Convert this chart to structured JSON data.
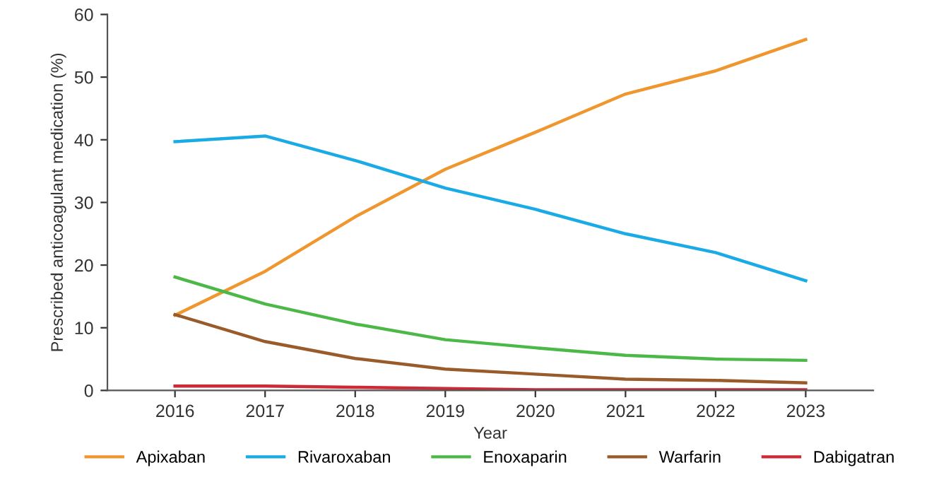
{
  "chart_data": {
    "type": "line",
    "xlabel": "Year",
    "ylabel": "Prescribed anticoagulant medication (%)",
    "categories": [
      "2016",
      "2017",
      "2018",
      "2019",
      "2020",
      "2021",
      "2022",
      "2023"
    ],
    "series": [
      {
        "name": "Apixaban",
        "color": "#f0962e",
        "values": [
          12,
          19,
          27.7,
          35.3,
          41.2,
          47.3,
          51,
          56
        ]
      },
      {
        "name": "Rivaroxaban",
        "color": "#1aabe6",
        "values": [
          39.7,
          40.6,
          36.7,
          32.3,
          28.9,
          25,
          22,
          17.5
        ]
      },
      {
        "name": "Enoxaparin",
        "color": "#4cb848",
        "values": [
          18.1,
          13.8,
          10.6,
          8.1,
          6.8,
          5.6,
          5.0,
          4.8
        ]
      },
      {
        "name": "Warfarin",
        "color": "#9a5b2b",
        "values": [
          12.1,
          7.8,
          5.1,
          3.4,
          2.6,
          1.8,
          1.6,
          1.2
        ]
      },
      {
        "name": "Dabigatran",
        "color": "#cc2a36",
        "values": [
          0.7,
          0.7,
          0.5,
          0.3,
          0.1,
          0.1,
          0.1,
          0.1
        ]
      }
    ],
    "ylim": [
      0,
      60
    ],
    "yticks": [
      0,
      10,
      20,
      30,
      40,
      50,
      60
    ],
    "grid": false,
    "legend": "bottom",
    "marker": "none",
    "line_style": "solid"
  }
}
